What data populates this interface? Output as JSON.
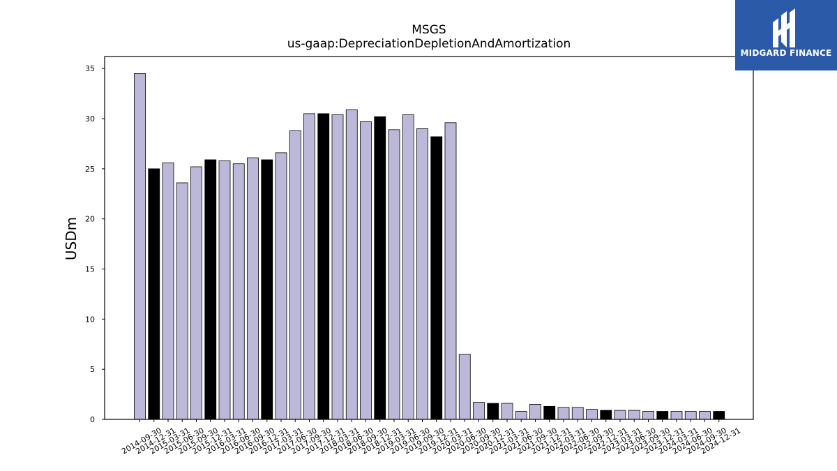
{
  "logo": {
    "text": "MIDGARD FINANCE"
  },
  "chart_data": {
    "type": "bar",
    "title": "MSGS",
    "subtitle": "us-gaap:DepreciationDepletionAndAmortization",
    "xlabel": "",
    "ylabel": "USDm",
    "ylim": [
      0,
      36.2
    ],
    "yticks": [
      0,
      5,
      10,
      15,
      20,
      25,
      30,
      35
    ],
    "grid": false,
    "colors": {
      "quarter": "#bcb8d9",
      "fiscal_year_end": "#000000",
      "edge": "#000000"
    },
    "categories": [
      "2014-09-30",
      "2014-12-31",
      "2015-03-31",
      "2015-06-30",
      "2015-09-30",
      "2015-12-31",
      "2016-03-31",
      "2016-06-30",
      "2016-09-30",
      "2016-12-31",
      "2017-03-31",
      "2017-06-30",
      "2017-09-30",
      "2017-12-31",
      "2018-03-31",
      "2018-06-30",
      "2018-09-30",
      "2018-12-31",
      "2019-03-31",
      "2019-06-30",
      "2019-09-30",
      "2019-12-31",
      "2020-03-31",
      "2020-06-30",
      "2020-09-30",
      "2020-12-31",
      "2021-03-31",
      "2021-06-30",
      "2021-09-30",
      "2021-12-31",
      "2022-03-31",
      "2022-06-30",
      "2022-09-30",
      "2022-12-31",
      "2023-03-31",
      "2023-06-30",
      "2023-09-30",
      "2023-12-31",
      "2024-03-31",
      "2024-06-30",
      "2024-09-30",
      "2024-12-31"
    ],
    "values": [
      34.5,
      25.0,
      25.6,
      23.6,
      25.2,
      25.9,
      25.8,
      25.5,
      26.1,
      25.9,
      26.6,
      28.8,
      30.5,
      30.5,
      30.4,
      30.9,
      29.7,
      30.2,
      28.9,
      30.4,
      29.0,
      28.2,
      29.6,
      6.5,
      1.7,
      1.6,
      1.6,
      0.8,
      1.5,
      1.3,
      1.2,
      1.2,
      1.0,
      0.9,
      0.9,
      0.9,
      0.8,
      0.8,
      0.8,
      0.8,
      0.8,
      0.8
    ],
    "highlight": [
      false,
      true,
      false,
      false,
      false,
      true,
      false,
      false,
      false,
      true,
      false,
      false,
      false,
      true,
      false,
      false,
      false,
      true,
      false,
      false,
      false,
      true,
      false,
      false,
      false,
      true,
      false,
      false,
      false,
      true,
      false,
      false,
      false,
      true,
      false,
      false,
      false,
      true,
      false,
      false,
      false,
      true
    ]
  }
}
